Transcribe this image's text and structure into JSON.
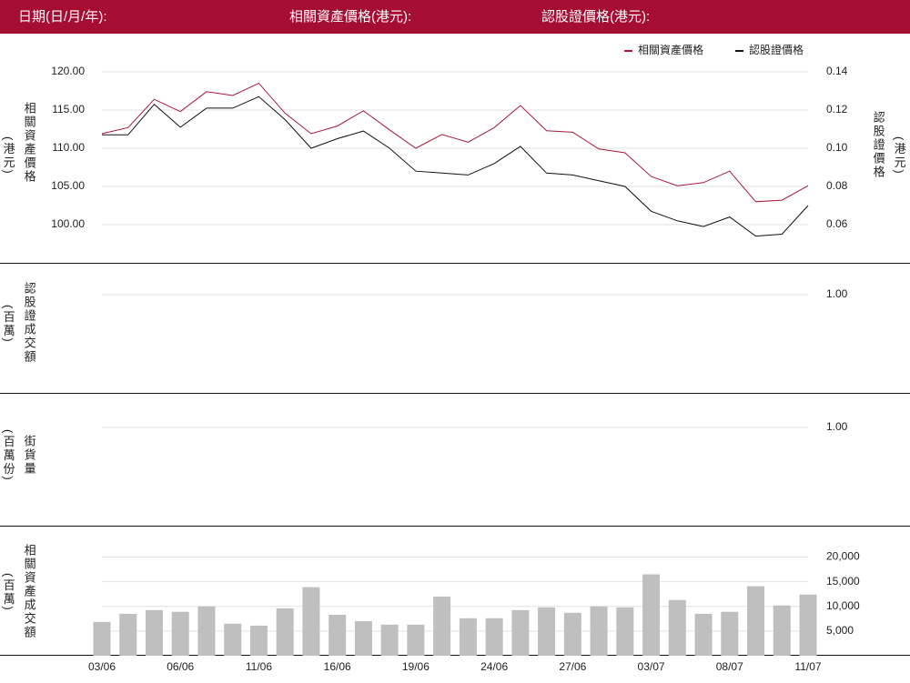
{
  "header": {
    "date_label": "日期(日/月/年):",
    "underlying_label": "相關資產價格(港元):",
    "warrant_label": "認股證價格(港元):"
  },
  "chart_data": [
    {
      "type": "line",
      "ylabel": "相關資產價格",
      "ylabel_unit": "(港元)",
      "y2label": "認股證價格",
      "y2label_unit": "(港元)",
      "legend": "upper right",
      "ylim": [
        95,
        122
      ],
      "yticks": [
        {
          "value": 100,
          "label": "100.00"
        },
        {
          "value": 105,
          "label": "105.00"
        },
        {
          "value": 110,
          "label": "110.00"
        },
        {
          "value": 115,
          "label": "115.00"
        },
        {
          "value": 120,
          "label": "120.00"
        }
      ],
      "y2lim": [
        0.04,
        0.148
      ],
      "y2ticks": [
        0.06,
        0.08,
        {
          "value": 0.1,
          "label": "0.10"
        },
        0.12,
        0.14
      ],
      "series": [
        {
          "name": "相關資產價格",
          "color": "#a8193d",
          "values": [
            111.9,
            112.7,
            116.4,
            114.8,
            117.4,
            116.9,
            118.5,
            114.6,
            111.9,
            112.9,
            114.9,
            112.4,
            110.0,
            111.8,
            110.8,
            112.7,
            115.6,
            112.3,
            112.1,
            109.9,
            109.4,
            106.3,
            105.1,
            105.5,
            107.0,
            103.0,
            103.2,
            105.1
          ]
        },
        {
          "name": "認股證價格",
          "color": "#111111",
          "axis": "y2",
          "values": [
            0.107,
            0.107,
            0.123,
            0.111,
            0.121,
            0.121,
            0.127,
            0.115,
            0.1,
            0.105,
            0.109,
            0.1,
            0.088,
            0.087,
            0.086,
            0.092,
            0.101,
            0.087,
            0.086,
            0.083,
            0.08,
            0.067,
            0.062,
            0.059,
            0.064,
            0.054,
            0.055,
            0.07
          ]
        }
      ]
    },
    {
      "type": "line",
      "ylabel": "認股證成交額",
      "ylabel_unit": "(百萬)",
      "ylim": [
        0,
        1.2
      ],
      "yticks": [
        {
          "value": 1,
          "label": "1.00"
        }
      ]
    },
    {
      "type": "line",
      "ylabel": "街貨量",
      "ylabel_unit": "(百萬份)",
      "ylim": [
        0,
        1.2
      ],
      "yticks": [
        {
          "value": 1,
          "label": "1.00"
        }
      ]
    },
    {
      "type": "bar",
      "ylabel": "相關資產成交額",
      "ylabel_unit": "(百萬)",
      "color": "#bfbfbf",
      "categories": [
        "03/06",
        null,
        null,
        "06/06",
        null,
        null,
        "11/06",
        null,
        null,
        "16/06",
        null,
        null,
        "19/06",
        null,
        null,
        "24/06",
        null,
        null,
        "27/06",
        null,
        null,
        "03/07",
        null,
        null,
        "08/07",
        null,
        null,
        "11/07"
      ],
      "values": [
        6850,
        8500,
        9250,
        8900,
        10000,
        6500,
        6100,
        9600,
        13900,
        8300,
        7000,
        6300,
        6300,
        12000,
        7600,
        7600,
        9250,
        9800,
        8700,
        10000,
        9800,
        16500,
        11300,
        8500,
        8900,
        14100,
        10200,
        12400
      ],
      "ylim": [
        0,
        22500
      ],
      "yticks": [
        {
          "value": 5000,
          "label": "5,000"
        },
        {
          "value": 10000,
          "label": "10,000"
        },
        {
          "value": 15000,
          "label": "15,000"
        },
        {
          "value": 20000,
          "label": "20,000"
        }
      ]
    }
  ]
}
